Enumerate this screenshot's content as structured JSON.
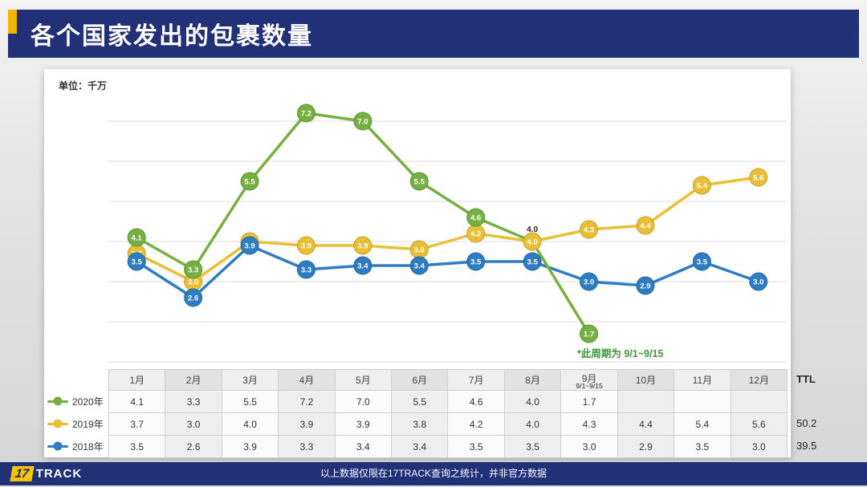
{
  "header": {
    "title": "各个国家发出的包裹数量"
  },
  "colors": {
    "navy": "#223177",
    "gold": "#f2b600",
    "green": "#76b043",
    "yellow": "#e9bf35",
    "blue": "#2e7dc2"
  },
  "chart": {
    "unit_label": "单位：千万",
    "annotation": "*此周期为 9/1~9/15"
  },
  "chart_data": {
    "type": "line",
    "title": "各个国家发出的包裹数量",
    "categories": [
      "1月",
      "2月",
      "3月",
      "4月",
      "5月",
      "6月",
      "7月",
      "8月",
      "9月",
      "10月",
      "11月",
      "12月"
    ],
    "series": [
      {
        "name": "2020年",
        "color": "#76b043",
        "stroke": "#5d9434",
        "label_above_index": 7,
        "values": [
          4.1,
          3.3,
          5.5,
          7.2,
          7.0,
          5.5,
          4.6,
          4.0,
          1.7,
          null,
          null,
          null
        ]
      },
      {
        "name": "2019年",
        "color": "#e9bf35",
        "stroke": "#c9a02a",
        "values": [
          3.7,
          3.0,
          4.0,
          3.9,
          3.9,
          3.8,
          4.2,
          4.0,
          4.3,
          4.4,
          5.4,
          5.6
        ]
      },
      {
        "name": "2018年",
        "color": "#2e7dc2",
        "stroke": "#2266a5",
        "values": [
          3.5,
          2.6,
          3.9,
          3.3,
          3.4,
          3.4,
          3.5,
          3.5,
          3.0,
          2.9,
          3.5,
          3.0
        ]
      }
    ],
    "ylim": [
      1,
      8
    ],
    "grid": true,
    "legend_position": "left-of-table"
  },
  "table": {
    "ttl_label": "TTL",
    "ttl_values": [
      "",
      "50.2",
      "39.5"
    ],
    "sub_header": {
      "month_index": 8,
      "text": "9/1~9/15"
    }
  },
  "footer": {
    "logo_num": "17",
    "logo_text": "TRACK",
    "note": "以上数据仅限在17TRACK查询之统计，并非官方数据"
  }
}
